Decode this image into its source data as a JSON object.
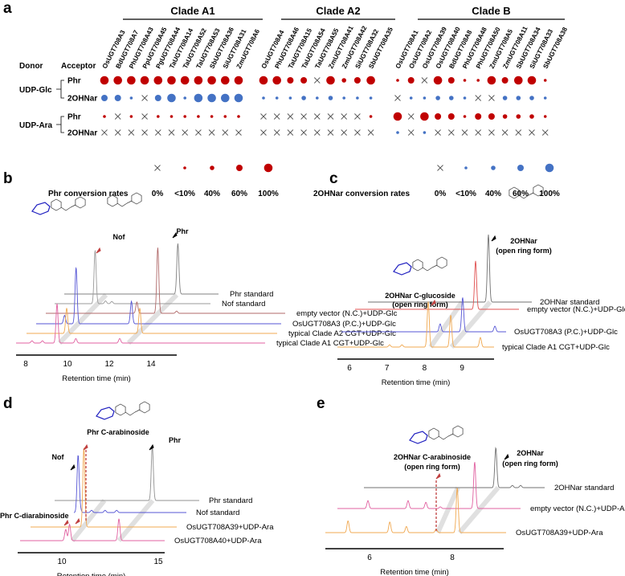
{
  "panel_labels": {
    "a": "a",
    "b": "b",
    "c": "c",
    "d": "d",
    "e": "e"
  },
  "colors": {
    "phr": "#c00000",
    "twoohnar": "#4472c4",
    "cross": "#555555"
  },
  "panel_a": {
    "donor_header": "Donor",
    "acceptor_header": "Acceptor",
    "clades": [
      {
        "name": "Clade A1",
        "genes": [
          "OsUGT708A3",
          "BdUGT708A7",
          "PhUGT708A43",
          "PpUGT708A45",
          "PgUGT708A44",
          "TaUGT708A14",
          "TaUGT708A52",
          "TaUGT708A53",
          "SbUGT708A36",
          "SiUGT708A31",
          "ZmUGT708A6"
        ]
      },
      {
        "name": "Clade A2",
        "genes": [
          "OsUGT708A4",
          "PhUGT708A46",
          "TaUGT708A15",
          "TaUGT708A54",
          "TaUGT708A55",
          "ZmUGT708A41",
          "ZmUGT708A42",
          "SiUGT708A32",
          "SbUGT708A35"
        ]
      },
      {
        "name": "Clade B",
        "genes": [
          "OsUGT708A1",
          "OsUGT708A2",
          "OsUGT708A39",
          "OsUGT708A40",
          "BdUGT708A8",
          "PhUGT708A48",
          "PhUGT708A50",
          "ZmUGT708A5",
          "ZmUGT708A11",
          "SbUGT708A34",
          "SiUGT708A33",
          "SbUGT708A38"
        ]
      }
    ],
    "level_scale": [
      "0%",
      "<10%",
      "40%",
      "60%",
      "100%"
    ],
    "donors": [
      {
        "name": "UDP-Glc",
        "rows": [
          {
            "acceptor": "Phr",
            "kind": "phr",
            "levels": [
              4,
              4,
              4,
              4,
              4,
              4,
              4,
              4,
              4,
              4,
              4,
              4,
              4,
              3,
              3,
              0,
              4,
              2,
              3,
              4,
              1,
              3,
              0,
              4,
              3,
              1,
              1,
              4,
              3,
              4,
              4,
              1
            ]
          },
          {
            "acceptor": "2OHNar",
            "kind": "twoohnar",
            "levels": [
              3,
              3,
              1,
              0,
              3,
              4,
              1,
              4,
              4,
              4,
              4,
              1,
              1,
              1,
              2,
              1,
              2,
              1,
              1,
              1,
              0,
              1,
              1,
              2,
              2,
              1,
              0,
              0,
              2,
              2,
              2,
              1
            ]
          }
        ]
      },
      {
        "name": "UDP-Ara",
        "rows": [
          {
            "acceptor": "Phr",
            "kind": "phr",
            "levels": [
              1,
              0,
              1,
              0,
              1,
              1,
              1,
              1,
              1,
              1,
              1,
              0,
              0,
              0,
              0,
              0,
              0,
              0,
              0,
              1,
              4,
              0,
              4,
              3,
              3,
              1,
              3,
              3,
              2,
              2,
              2,
              1
            ]
          },
          {
            "acceptor": "2OHNar",
            "kind": "twoohnar",
            "levels": [
              0,
              0,
              0,
              0,
              0,
              0,
              0,
              0,
              0,
              0,
              0,
              0,
              0,
              0,
              0,
              0,
              0,
              0,
              0,
              0,
              1,
              0,
              1,
              0,
              0,
              0,
              0,
              0,
              0,
              0,
              0,
              0
            ]
          }
        ]
      }
    ],
    "legend": {
      "phr_title": "Phr conversion rates",
      "twoohnar_title": "2OHNar conversion rates",
      "labels": [
        "0%",
        "<10%",
        "40%",
        "60%",
        "100%"
      ]
    }
  },
  "panels": {
    "b": {
      "xlabel": "Retention time (min)",
      "ticks": [
        8,
        10,
        12,
        14
      ],
      "annotations": [
        "Nof",
        "Phr"
      ],
      "traces": [
        {
          "label": "Phr standard",
          "color": "#808080",
          "peaks": [
            [
              12.9,
              0.9
            ]
          ]
        },
        {
          "label": "Nof standard",
          "color": "#9a9a9a",
          "peaks": [
            [
              9.4,
              0.95
            ],
            [
              9.9,
              0.05
            ],
            [
              10.2,
              0.04
            ]
          ]
        },
        {
          "label": "empty vector (N.C.)+UDP-Glc",
          "color": "#b06a6a",
          "peaks": [
            [
              12.9,
              1.17
            ],
            [
              11.9,
              0.2
            ],
            [
              13.8,
              0.04
            ]
          ]
        },
        {
          "label": "OsUGT708A3 (P.C.)+UDP-Glc",
          "color": "#5555d5",
          "peaks": [
            [
              9.45,
              1.0
            ],
            [
              8.9,
              0.15
            ],
            [
              12.1,
              0.4
            ]
          ]
        },
        {
          "label": "typical Clade A2 CGT+UDP-Glc",
          "color": "#f0a850",
          "peaks": [
            [
              9.5,
              0.45
            ],
            [
              13.0,
              0.45
            ]
          ]
        },
        {
          "label": "typical Clade A1 CGT+UDP-Glc",
          "color": "#e060a0",
          "peaks": [
            [
              9.5,
              0.7
            ],
            [
              10.4,
              0.08
            ],
            [
              12.5,
              0.08
            ],
            [
              8.3,
              0.04
            ],
            [
              8.8,
              0.04
            ]
          ]
        }
      ]
    },
    "c": {
      "xlabel": "Retention time (min)",
      "ticks": [
        6,
        7,
        8,
        9
      ],
      "annotations": [
        "2OHNar",
        "(open ring form)",
        "2OHNar C-glucoside",
        "(open ring form)"
      ],
      "traces": [
        {
          "label": "2OHNar standard",
          "color": "#707070",
          "peaks": [
            [
              8.89,
              1.2
            ]
          ]
        },
        {
          "label": "empty vector (N.C.)+UDP-Glc",
          "color": "#e05050",
          "peaks": [
            [
              8.89,
              0.86
            ]
          ]
        },
        {
          "label": "OsUGT708A3 (P.C.)+UDP-Glc",
          "color": "#5555d5",
          "peaks": [
            [
              8.91,
              0.61
            ],
            [
              8.31,
              0.14
            ],
            [
              9.77,
              0.1
            ]
          ]
        },
        {
          "label": "typical Clade A1 CGT+UDP-Glc",
          "color": "#f0a850",
          "peaks": [
            [
              8.1,
              0.81
            ],
            [
              8.7,
              0.57
            ],
            [
              9.49,
              0.17
            ],
            [
              7.07,
              0.04
            ],
            [
              7.4,
              0.04
            ]
          ]
        }
      ]
    },
    "d": {
      "xlabel": "Retention time (min)",
      "ticks": [
        10,
        15
      ],
      "annotations": [
        "Phr C-arabinoside",
        "Phr",
        "Nof",
        "Phr C-diarabinoside"
      ],
      "traces": [
        {
          "label": "Phr standard",
          "color": "#909090",
          "peaks": [
            [
              12.9,
              0.97
            ]
          ]
        },
        {
          "label": "Nof standard",
          "color": "#5555d5",
          "peaks": [
            [
              9.8,
              1.01
            ],
            [
              9.9,
              0.08
            ],
            [
              10.5,
              0.04
            ],
            [
              11.2,
              0.04
            ],
            [
              11.8,
              0.04
            ]
          ]
        },
        {
          "label": "OsUGT708A39+UDP-Ara",
          "color": "#f0a850",
          "peaks": [
            [
              10.6,
              1.41
            ]
          ]
        },
        {
          "label": "OsUGT708A40+UDP-Ara",
          "color": "#e060a0",
          "peaks": [
            [
              10.4,
              0.29
            ],
            [
              10.2,
              0.2
            ],
            [
              12.96,
              0.39
            ]
          ]
        }
      ]
    },
    "e": {
      "xlabel": "Retention time (min)",
      "ticks": [
        6,
        8
      ],
      "annotations": [
        "2OHNar",
        "(open ring form)",
        "2OHNar C-arabinoside",
        "(open ring form)"
      ],
      "traces": [
        {
          "label": "2OHNar standard",
          "color": "#707070",
          "peaks": [
            [
              8.12,
              0.71
            ],
            [
              8.52,
              0.04
            ],
            [
              8.72,
              0.04
            ]
          ]
        },
        {
          "label": "empty vector (N.C.)+UDP-Ara",
          "color": "#e060a0",
          "peaks": [
            [
              5.67,
              0.14
            ],
            [
              6.64,
              0.14
            ],
            [
              7.07,
              0.11
            ],
            [
              8.25,
              0.83
            ],
            [
              7.42,
              0.03
            ]
          ]
        },
        {
          "label": "OsUGT708A39+UDP-Ara",
          "color": "#f0a850",
          "peaks": [
            [
              5.48,
              0.21
            ],
            [
              6.49,
              0.19
            ],
            [
              6.89,
              0.11
            ],
            [
              7.61,
              0.06
            ],
            [
              8.12,
              0.8
            ]
          ]
        }
      ]
    }
  }
}
